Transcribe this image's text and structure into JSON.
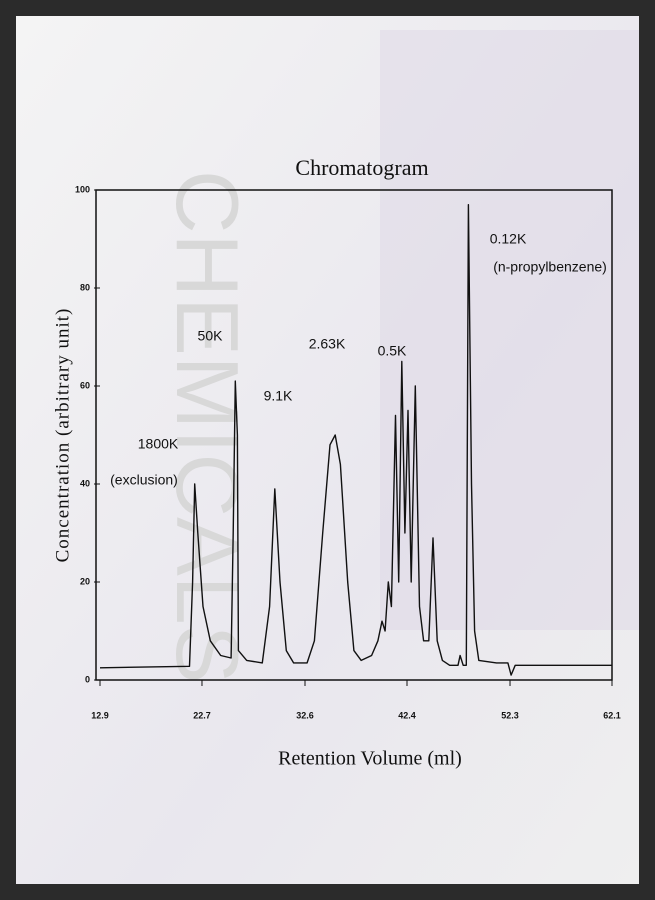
{
  "chart_data": {
    "type": "line",
    "title": "Chromatogram",
    "x_label": "Retention Volume (ml)",
    "y_label": "Concentration (arbitrary unit)",
    "watermark": "CHEMICALS",
    "xlim": [
      12.9,
      62.1
    ],
    "xticks": [
      12.9,
      22.7,
      32.6,
      42.4,
      52.3,
      62.1
    ],
    "ylim": [
      0,
      100
    ],
    "yticks": [
      0,
      20,
      40,
      60,
      80,
      100
    ],
    "series": [
      {
        "name": "Chromatogram",
        "color": "#111111",
        "x": [
          12.9,
          21.5,
          21.8,
          22.0,
          22.3,
          22.8,
          23.5,
          24.5,
          25.5,
          25.7,
          25.9,
          26.1,
          26.2,
          27.0,
          28.5,
          29.2,
          29.7,
          30.2,
          30.8,
          31.5,
          32.8,
          33.5,
          34.3,
          35.0,
          35.5,
          36.0,
          36.7,
          37.3,
          38.0,
          39.0,
          39.6,
          40.0,
          40.3,
          40.6,
          40.9,
          41.3,
          41.6,
          41.9,
          42.2,
          42.5,
          42.8,
          43.2,
          43.6,
          44.0,
          44.5,
          44.9,
          45.3,
          45.8,
          46.5,
          47.3,
          47.5,
          47.8,
          48.1,
          48.3,
          48.6,
          48.9,
          49.3,
          51.0,
          52.1,
          52.4,
          52.8,
          62.1
        ],
        "values": [
          2.5,
          2.8,
          20,
          40,
          30,
          15,
          8,
          5,
          4.5,
          30,
          61,
          50,
          6,
          4,
          3.5,
          15,
          39,
          20,
          6,
          3.5,
          3.5,
          8,
          30,
          48,
          50,
          44,
          20,
          6,
          4,
          5,
          8,
          12,
          10,
          20,
          15,
          54,
          20,
          65,
          30,
          55,
          20,
          60,
          15,
          8,
          8,
          29,
          8,
          4,
          3,
          3,
          5,
          3,
          3,
          97,
          40,
          10,
          4,
          3.5,
          3.5,
          1,
          3,
          3
        ]
      }
    ],
    "annotations": [
      "1800K",
      "(exclusion)",
      "50K",
      "9.1K",
      "2.63K",
      "0.5K",
      "0.12K",
      "(n-propylbenzene)"
    ]
  }
}
